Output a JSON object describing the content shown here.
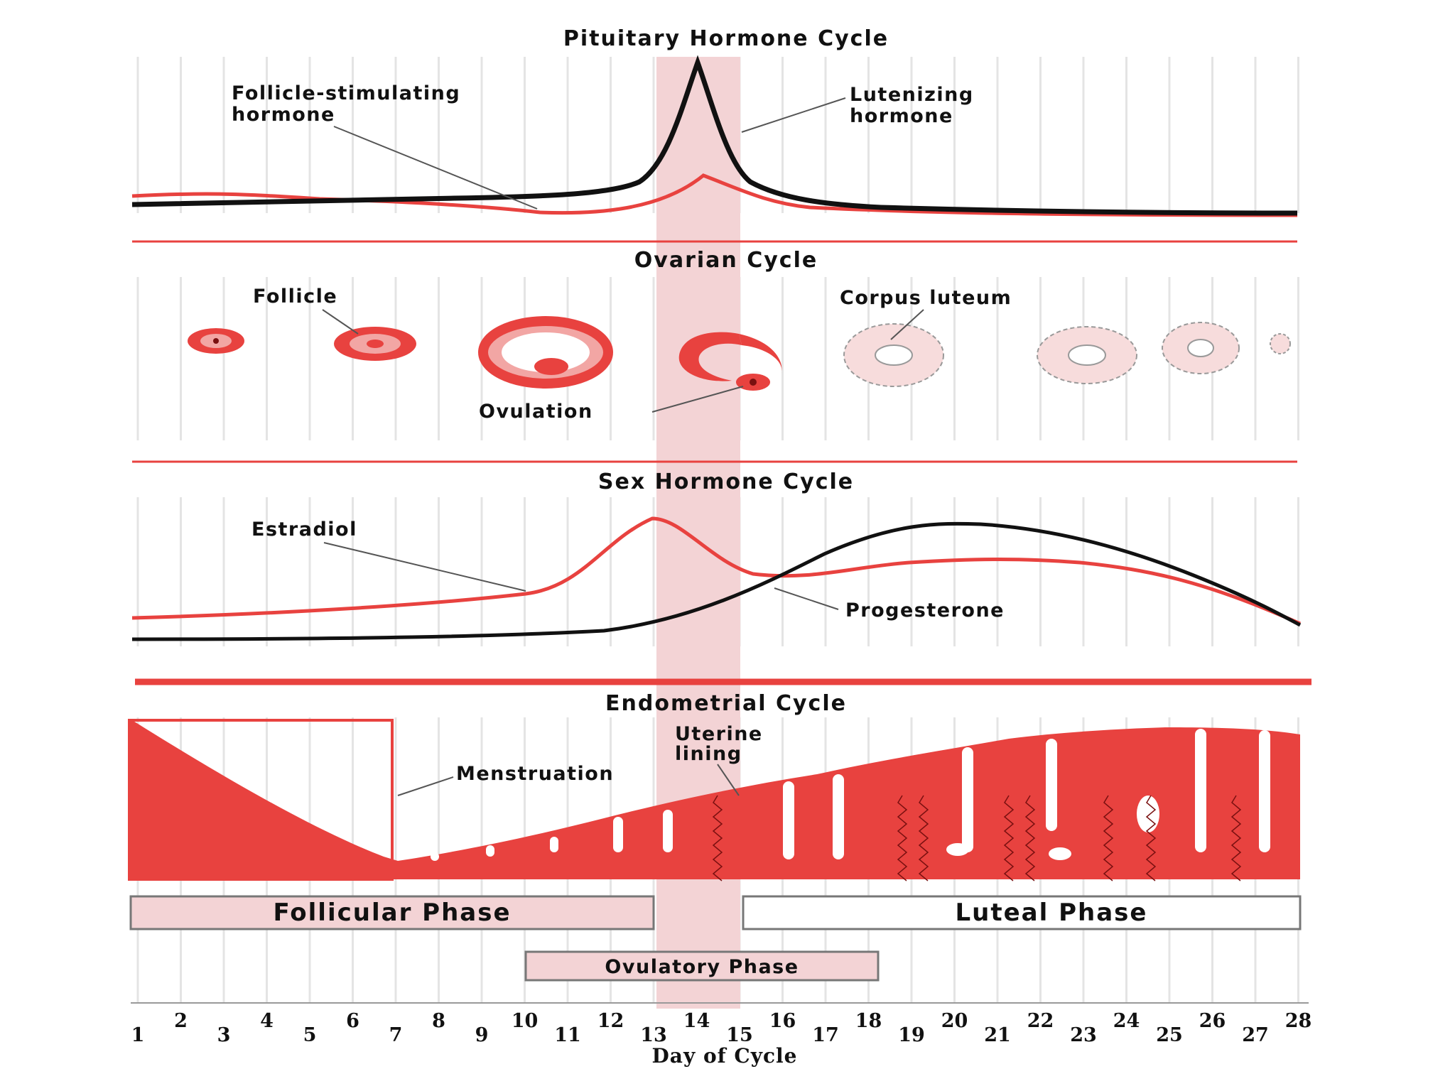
{
  "panels": {
    "pituitary": {
      "title": "Pituitary Hormone Cycle",
      "fsh_label": [
        "Follicle-stimulating",
        "hormone"
      ],
      "lh_label": [
        "Lutenizing",
        "hormone"
      ]
    },
    "ovarian": {
      "title": "Ovarian Cycle",
      "follicle_label": "Follicle",
      "corpus_label": "Corpus luteum",
      "ovulation_label": "Ovulation"
    },
    "sex_hormone": {
      "title": "Sex Hormone Cycle",
      "estradiol_label": "Estradiol",
      "progesterone_label": "Progesterone"
    },
    "endometrial": {
      "title": "Endometrial Cycle",
      "lining_label": [
        "Uterine",
        "lining"
      ],
      "menstruation_label": "Menstruation"
    }
  },
  "phases": {
    "follicular": "Follicular Phase",
    "luteal": "Luteal Phase",
    "ovulatory": "Ovulatory Phase"
  },
  "axis": {
    "title": "Day of Cycle",
    "days": [
      "1",
      "2",
      "3",
      "4",
      "5",
      "6",
      "7",
      "8",
      "9",
      "10",
      "11",
      "12",
      "13",
      "14",
      "15",
      "16",
      "17",
      "18",
      "19",
      "20",
      "21",
      "22",
      "23",
      "24",
      "25",
      "26",
      "27",
      "28"
    ]
  },
  "colors": {
    "red": "#e8423f",
    "pink": "#f2a6a4",
    "band": "#f3d3d5",
    "grid": "#e4e4e4",
    "black": "#111111"
  }
}
